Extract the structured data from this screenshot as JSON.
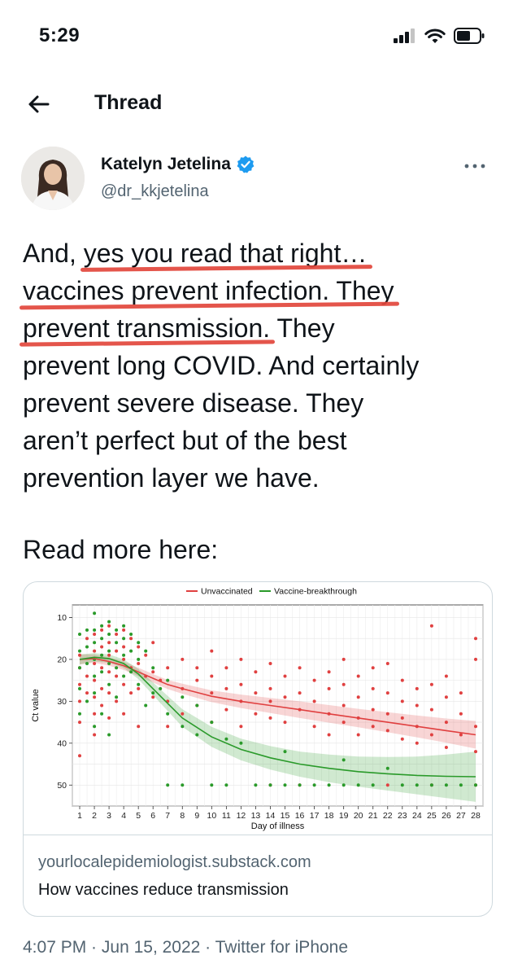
{
  "status_bar": {
    "time": "5:29"
  },
  "header": {
    "title": "Thread"
  },
  "author": {
    "name": "Katelyn Jetelina",
    "handle": "@dr_kkjetelina"
  },
  "tweet": {
    "lines": [
      [
        "And, ",
        "yes you read that right…",
        ""
      ],
      [
        "",
        "vaccines prevent infection. They",
        ""
      ],
      [
        "",
        "prevent transmission.",
        " They"
      ],
      [
        "prevent long COVID. And certainly",
        "",
        ""
      ],
      [
        "prevent severe disease. They",
        "",
        ""
      ],
      [
        "aren’t perfect but of the best",
        "",
        ""
      ],
      [
        "prevention layer we have.",
        "",
        ""
      ]
    ],
    "read_more": "Read more here:"
  },
  "card": {
    "domain": "yourlocalepidemiologist.substack.com",
    "title": "How vaccines reduce transmission"
  },
  "meta": {
    "time": "4:07 PM",
    "date": "Jun 15, 2022",
    "source": "Twitter for iPhone",
    "separator": " · "
  },
  "chart_data": {
    "type": "scatter",
    "xlabel": "Day of illness",
    "ylabel": "Ct value",
    "x_ticks": [
      1,
      2,
      3,
      4,
      5,
      6,
      7,
      8,
      9,
      10,
      11,
      12,
      13,
      14,
      15,
      16,
      17,
      18,
      19,
      20,
      21,
      22,
      23,
      24,
      25,
      26,
      27,
      28
    ],
    "y_ticks": [
      10,
      20,
      30,
      40,
      50
    ],
    "xlim": [
      0.5,
      28.5
    ],
    "ylim": [
      7,
      55
    ],
    "y_reversed": true,
    "grid": true,
    "legend_position": "top",
    "series": [
      {
        "name": "Unvaccinated",
        "color": "#e04040",
        "fit_x": [
          1,
          2,
          3,
          4,
          5,
          6,
          7,
          8,
          10,
          12,
          14,
          16,
          18,
          20,
          22,
          24,
          26,
          28
        ],
        "fit_y": [
          20,
          19.8,
          20.5,
          21.5,
          23,
          24.5,
          26,
          27,
          28.8,
          30,
          31,
          32,
          33,
          34,
          35,
          36,
          37,
          38
        ],
        "fit_band": [
          1.2,
          1,
          1,
          1,
          1,
          1,
          1.1,
          1.2,
          1.4,
          1.6,
          1.8,
          2,
          2.1,
          2.2,
          2.4,
          2.6,
          2.9,
          3.3
        ],
        "points": [
          [
            1,
            19
          ],
          [
            1,
            22
          ],
          [
            1,
            26
          ],
          [
            1,
            30
          ],
          [
            1,
            35
          ],
          [
            1,
            43
          ],
          [
            1.5,
            15
          ],
          [
            1.5,
            24
          ],
          [
            1.5,
            28
          ],
          [
            2,
            14
          ],
          [
            2,
            18
          ],
          [
            2,
            21
          ],
          [
            2,
            25
          ],
          [
            2,
            29
          ],
          [
            2,
            33
          ],
          [
            2,
            38
          ],
          [
            2.5,
            13
          ],
          [
            2.5,
            17
          ],
          [
            2.5,
            22
          ],
          [
            2.5,
            27
          ],
          [
            2.5,
            31
          ],
          [
            3,
            12
          ],
          [
            3,
            16
          ],
          [
            3,
            19
          ],
          [
            3,
            23
          ],
          [
            3,
            28
          ],
          [
            3,
            34
          ],
          [
            3.5,
            14
          ],
          [
            3.5,
            18
          ],
          [
            3.5,
            24
          ],
          [
            3.5,
            30
          ],
          [
            4,
            13
          ],
          [
            4,
            17
          ],
          [
            4,
            20
          ],
          [
            4,
            26
          ],
          [
            4,
            33
          ],
          [
            4.5,
            15
          ],
          [
            4.5,
            22
          ],
          [
            4.5,
            28
          ],
          [
            5,
            17
          ],
          [
            5,
            21
          ],
          [
            5,
            27
          ],
          [
            5,
            36
          ],
          [
            5.5,
            19
          ],
          [
            5.5,
            24
          ],
          [
            6,
            16
          ],
          [
            6,
            23
          ],
          [
            6,
            29
          ],
          [
            6.5,
            25
          ],
          [
            7,
            22
          ],
          [
            7,
            30
          ],
          [
            7,
            36
          ],
          [
            8,
            20
          ],
          [
            8,
            27
          ],
          [
            8,
            33
          ],
          [
            9,
            22
          ],
          [
            9,
            25
          ],
          [
            9,
            31
          ],
          [
            10,
            18
          ],
          [
            10,
            24
          ],
          [
            10,
            28
          ],
          [
            10,
            35
          ],
          [
            11,
            22
          ],
          [
            11,
            27
          ],
          [
            11,
            32
          ],
          [
            12,
            20
          ],
          [
            12,
            26
          ],
          [
            12,
            30
          ],
          [
            12,
            36
          ],
          [
            13,
            23
          ],
          [
            13,
            28
          ],
          [
            13,
            33
          ],
          [
            14,
            21
          ],
          [
            14,
            27
          ],
          [
            14,
            30
          ],
          [
            14,
            34
          ],
          [
            14,
            50
          ],
          [
            15,
            24
          ],
          [
            15,
            29
          ],
          [
            15,
            35
          ],
          [
            16,
            22
          ],
          [
            16,
            28
          ],
          [
            16,
            32
          ],
          [
            16,
            50
          ],
          [
            17,
            25
          ],
          [
            17,
            30
          ],
          [
            17,
            36
          ],
          [
            18,
            23
          ],
          [
            18,
            27
          ],
          [
            18,
            33
          ],
          [
            18,
            38
          ],
          [
            19,
            20
          ],
          [
            19,
            26
          ],
          [
            19,
            31
          ],
          [
            19,
            35
          ],
          [
            20,
            24
          ],
          [
            20,
            29
          ],
          [
            20,
            34
          ],
          [
            20,
            38
          ],
          [
            21,
            22
          ],
          [
            21,
            27
          ],
          [
            21,
            32
          ],
          [
            21,
            36
          ],
          [
            22,
            21
          ],
          [
            22,
            28
          ],
          [
            22,
            33
          ],
          [
            22,
            37
          ],
          [
            22,
            50
          ],
          [
            23,
            25
          ],
          [
            23,
            30
          ],
          [
            23,
            34
          ],
          [
            23,
            39
          ],
          [
            24,
            27
          ],
          [
            24,
            31
          ],
          [
            24,
            36
          ],
          [
            24,
            40
          ],
          [
            25,
            12
          ],
          [
            25,
            26
          ],
          [
            25,
            32
          ],
          [
            25,
            38
          ],
          [
            25,
            50
          ],
          [
            26,
            24
          ],
          [
            26,
            29
          ],
          [
            26,
            35
          ],
          [
            26,
            41
          ],
          [
            27,
            28
          ],
          [
            27,
            33
          ],
          [
            27,
            38
          ],
          [
            28,
            15
          ],
          [
            28,
            20
          ],
          [
            28,
            36
          ],
          [
            28,
            42
          ],
          [
            28,
            50
          ]
        ]
      },
      {
        "name": "Vaccine-breakthrough",
        "color": "#2a9a2a",
        "fit_x": [
          1,
          2,
          3,
          4,
          5,
          6,
          7,
          8,
          10,
          12,
          14,
          16,
          18,
          20,
          22,
          24,
          26,
          28
        ],
        "fit_y": [
          20,
          19.5,
          19.8,
          21,
          23.5,
          27,
          30.5,
          34,
          38.5,
          41.5,
          43.5,
          45,
          46,
          46.8,
          47.3,
          47.7,
          47.9,
          48
        ],
        "fit_band": [
          1.2,
          1,
          1,
          1,
          1.2,
          1.5,
          1.8,
          2.1,
          2.4,
          2.6,
          2.8,
          3,
          3.3,
          3.6,
          4,
          4.5,
          5.2,
          6
        ],
        "points": [
          [
            1,
            14
          ],
          [
            1,
            18
          ],
          [
            1,
            22
          ],
          [
            1,
            27
          ],
          [
            1,
            33
          ],
          [
            1.5,
            13
          ],
          [
            1.5,
            17
          ],
          [
            1.5,
            21
          ],
          [
            1.5,
            30
          ],
          [
            2,
            9
          ],
          [
            2,
            13
          ],
          [
            2,
            16
          ],
          [
            2,
            20
          ],
          [
            2,
            24
          ],
          [
            2,
            28
          ],
          [
            2,
            36
          ],
          [
            2.5,
            12
          ],
          [
            2.5,
            15
          ],
          [
            2.5,
            19
          ],
          [
            2.5,
            23
          ],
          [
            2.5,
            33
          ],
          [
            3,
            11
          ],
          [
            3,
            14
          ],
          [
            3,
            18
          ],
          [
            3,
            21
          ],
          [
            3,
            26
          ],
          [
            3,
            38
          ],
          [
            3.5,
            13
          ],
          [
            3.5,
            16
          ],
          [
            3.5,
            22
          ],
          [
            3.5,
            29
          ],
          [
            4,
            12
          ],
          [
            4,
            15
          ],
          [
            4,
            19
          ],
          [
            4,
            24
          ],
          [
            4.5,
            14
          ],
          [
            4.5,
            18
          ],
          [
            4.5,
            23
          ],
          [
            5,
            16
          ],
          [
            5,
            20
          ],
          [
            5,
            26
          ],
          [
            5.5,
            18
          ],
          [
            5.5,
            31
          ],
          [
            6,
            22
          ],
          [
            6,
            28
          ],
          [
            6.5,
            27
          ],
          [
            7,
            25
          ],
          [
            7,
            33
          ],
          [
            7,
            50
          ],
          [
            8,
            29
          ],
          [
            8,
            36
          ],
          [
            8,
            50
          ],
          [
            9,
            31
          ],
          [
            9,
            38
          ],
          [
            10,
            35
          ],
          [
            10,
            50
          ],
          [
            11,
            39
          ],
          [
            11,
            50
          ],
          [
            12,
            40
          ],
          [
            13,
            50
          ],
          [
            14,
            50
          ],
          [
            15,
            42
          ],
          [
            15,
            50
          ],
          [
            16,
            50
          ],
          [
            17,
            50
          ],
          [
            18,
            50
          ],
          [
            19,
            44
          ],
          [
            19,
            50
          ],
          [
            20,
            50
          ],
          [
            21,
            50
          ],
          [
            22,
            46
          ],
          [
            23,
            50
          ],
          [
            24,
            50
          ],
          [
            25,
            50
          ],
          [
            26,
            50
          ],
          [
            27,
            50
          ],
          [
            28,
            50
          ]
        ]
      }
    ]
  }
}
